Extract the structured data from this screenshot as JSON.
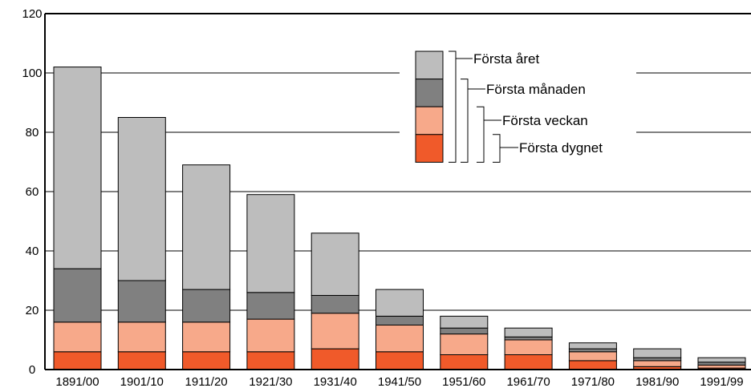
{
  "chart_data": {
    "type": "bar",
    "stacked": true,
    "categories": [
      "1891/00",
      "1901/10",
      "1911/20",
      "1921/30",
      "1931/40",
      "1941/50",
      "1951/60",
      "1961/70",
      "1971/80",
      "1981/90",
      "1991/99"
    ],
    "series": [
      {
        "name": "Första dygnet",
        "color": "#f05a2a",
        "values": [
          6,
          6,
          6,
          6,
          7,
          6,
          5,
          5,
          3,
          1,
          0.5
        ]
      },
      {
        "name": "Första veckan",
        "color": "#f7a98a",
        "values": [
          10,
          10,
          10,
          11,
          12,
          9,
          7,
          5,
          3,
          2,
          1
        ]
      },
      {
        "name": "Första månaden",
        "color": "#808080",
        "values": [
          18,
          14,
          11,
          9,
          6,
          3,
          2,
          1,
          1,
          1,
          1
        ]
      },
      {
        "name": "Första året",
        "color": "#bdbdbd",
        "values": [
          68,
          55,
          42,
          33,
          21,
          9,
          4,
          3,
          2,
          3,
          1.5
        ]
      }
    ],
    "ylim": [
      0,
      120
    ],
    "yticks": [
      0,
      20,
      40,
      60,
      80,
      100,
      120
    ],
    "grid": true,
    "legend_position": "top-center",
    "title": "",
    "xlabel": "",
    "ylabel": ""
  }
}
